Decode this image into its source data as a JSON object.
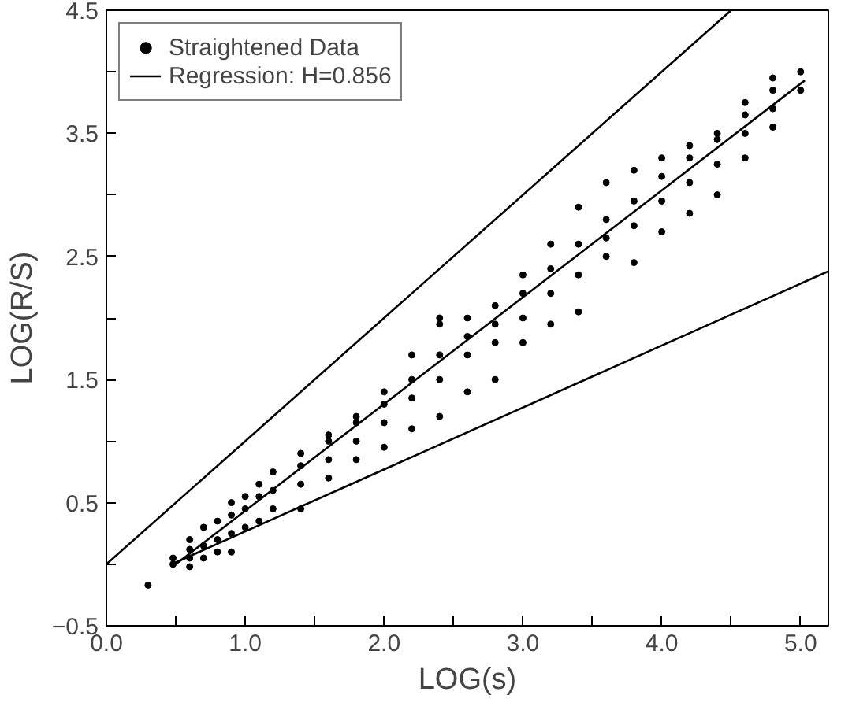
{
  "chart_data": {
    "type": "scatter",
    "xlabel": "LOG(s)",
    "ylabel": "LOG(R/S)",
    "xlim": [
      0,
      5.2
    ],
    "ylim": [
      -0.5,
      4.5
    ],
    "xticks": [
      {
        "value": 0,
        "label": "0.0"
      },
      {
        "value": 0.5,
        "label": null
      },
      {
        "value": 1,
        "label": "1.0"
      },
      {
        "value": 1.5,
        "label": null
      },
      {
        "value": 2,
        "label": "2.0"
      },
      {
        "value": 2.5,
        "label": null
      },
      {
        "value": 3,
        "label": "3.0"
      },
      {
        "value": 3.5,
        "label": null
      },
      {
        "value": 4,
        "label": "4.0"
      },
      {
        "value": 4.5,
        "label": null
      },
      {
        "value": 5,
        "label": "5.0"
      }
    ],
    "yticks": [
      -0.5,
      {
        "value": 0,
        "label": null
      },
      0.5,
      {
        "value": 1,
        "label": null
      },
      1.5,
      {
        "value": 2,
        "label": null
      },
      2.5,
      {
        "value": 3,
        "label": null
      },
      3.5,
      {
        "value": 4,
        "label": null
      },
      4.5
    ],
    "grid": false,
    "legend": "top left",
    "series": [
      {
        "name": "Straightened Data",
        "marker": "circle",
        "color": "#000000",
        "x": [
          0.3,
          0.48,
          0.48,
          0.6,
          0.6,
          0.6,
          0.6,
          0.7,
          0.7,
          0.7,
          0.8,
          0.8,
          0.8,
          0.9,
          0.9,
          0.9,
          0.9,
          1.0,
          1.0,
          1.0,
          1.1,
          1.1,
          1.1,
          1.2,
          1.2,
          1.2,
          1.4,
          1.4,
          1.4,
          1.4,
          1.6,
          1.6,
          1.6,
          1.6,
          1.8,
          1.8,
          1.8,
          1.8,
          2.0,
          2.0,
          2.0,
          2.0,
          2.2,
          2.2,
          2.2,
          2.2,
          2.4,
          2.4,
          2.4,
          2.4,
          2.4,
          2.6,
          2.6,
          2.6,
          2.6,
          2.8,
          2.8,
          2.8,
          2.8,
          3.0,
          3.0,
          3.0,
          3.0,
          3.2,
          3.2,
          3.2,
          3.2,
          3.4,
          3.4,
          3.4,
          3.4,
          3.6,
          3.6,
          3.6,
          3.6,
          3.8,
          3.8,
          3.8,
          3.8,
          4.0,
          4.0,
          4.0,
          4.0,
          4.2,
          4.2,
          4.2,
          4.2,
          4.4,
          4.4,
          4.4,
          4.4,
          4.6,
          4.6,
          4.6,
          4.6,
          4.8,
          4.8,
          4.8,
          4.8,
          5.0,
          5.0
        ],
        "values": [
          -0.17,
          0.0,
          0.05,
          -0.02,
          0.05,
          0.12,
          0.2,
          0.05,
          0.15,
          0.3,
          0.1,
          0.2,
          0.35,
          0.1,
          0.25,
          0.4,
          0.5,
          0.3,
          0.45,
          0.55,
          0.35,
          0.55,
          0.65,
          0.45,
          0.6,
          0.75,
          0.45,
          0.65,
          0.8,
          0.9,
          0.7,
          0.85,
          1.0,
          1.05,
          0.85,
          1.0,
          1.15,
          1.2,
          0.95,
          1.15,
          1.3,
          1.4,
          1.1,
          1.35,
          1.5,
          1.7,
          1.2,
          1.5,
          1.7,
          1.95,
          2.0,
          1.4,
          1.7,
          1.85,
          2.0,
          1.5,
          1.8,
          1.95,
          2.1,
          1.8,
          2.0,
          2.2,
          2.35,
          1.95,
          2.2,
          2.4,
          2.6,
          2.05,
          2.35,
          2.6,
          2.9,
          2.5,
          2.65,
          2.8,
          3.1,
          2.45,
          2.75,
          2.95,
          3.2,
          2.7,
          2.95,
          3.15,
          3.3,
          2.85,
          3.1,
          3.3,
          3.4,
          3.0,
          3.25,
          3.45,
          3.5,
          3.3,
          3.5,
          3.65,
          3.75,
          3.55,
          3.7,
          3.85,
          3.95,
          3.85,
          4.0
        ]
      },
      {
        "name": "Regression: H=0.856",
        "type": "line",
        "color": "#000000",
        "x": [
          0.5,
          5.03
        ],
        "values": [
          0.0,
          3.93
        ]
      },
      {
        "type": "line",
        "color": "#000000",
        "x": [
          0.0,
          4.5
        ],
        "values": [
          0.0,
          4.5
        ]
      },
      {
        "type": "line",
        "color": "#000000",
        "x": [
          0.47,
          5.2
        ],
        "values": [
          0.0,
          2.38
        ]
      }
    ]
  }
}
